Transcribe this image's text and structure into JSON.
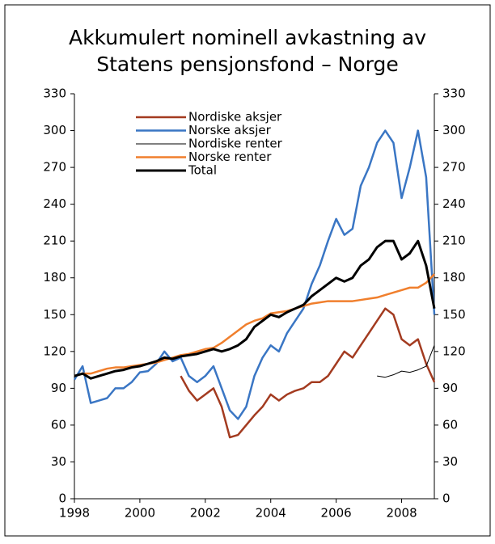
{
  "chart_data": {
    "type": "line",
    "title": [
      "Akkumulert nominell avkastning av",
      "Statens pensjonsfond – Norge"
    ],
    "x": [
      1998,
      1998.25,
      1998.5,
      1998.75,
      1999,
      1999.25,
      1999.5,
      1999.75,
      2000,
      2000.25,
      2000.5,
      2000.75,
      2001,
      2001.25,
      2001.5,
      2001.75,
      2002,
      2002.25,
      2002.5,
      2002.75,
      2003,
      2003.25,
      2003.5,
      2003.75,
      2004,
      2004.25,
      2004.5,
      2004.75,
      2005,
      2005.25,
      2005.5,
      2005.75,
      2006,
      2006.25,
      2006.5,
      2006.75,
      2007,
      2007.25,
      2007.5,
      2007.75,
      2008,
      2008.25,
      2008.5,
      2008.75,
      2009
    ],
    "series": [
      {
        "name": "Nordiske aksjer",
        "color": "#a33b20",
        "line_width": 2.5,
        "values": [
          null,
          null,
          null,
          null,
          null,
          null,
          null,
          null,
          null,
          null,
          null,
          null,
          null,
          100,
          88,
          80,
          85,
          90,
          75,
          50,
          52,
          60,
          68,
          75,
          85,
          80,
          85,
          88,
          90,
          95,
          95,
          100,
          110,
          120,
          115,
          125,
          135,
          145,
          155,
          150,
          130,
          125,
          130,
          110,
          95
        ]
      },
      {
        "name": "Norske aksjer",
        "color": "#3a76c4",
        "line_width": 2.5,
        "values": [
          97,
          108,
          78,
          80,
          82,
          90,
          90,
          95,
          103,
          104,
          110,
          120,
          112,
          115,
          100,
          95,
          100,
          108,
          90,
          72,
          65,
          75,
          100,
          115,
          125,
          120,
          135,
          145,
          155,
          175,
          190,
          210,
          228,
          215,
          220,
          255,
          270,
          290,
          300,
          290,
          245,
          270,
          300,
          262,
          150
        ]
      },
      {
        "name": "Nordiske renter",
        "color": "#000000",
        "line_width": 1,
        "values": [
          null,
          null,
          null,
          null,
          null,
          null,
          null,
          null,
          null,
          null,
          null,
          null,
          null,
          null,
          null,
          null,
          null,
          null,
          null,
          null,
          null,
          null,
          null,
          null,
          null,
          null,
          null,
          null,
          null,
          null,
          null,
          null,
          null,
          null,
          null,
          null,
          null,
          100,
          99,
          101,
          104,
          103,
          105,
          108,
          125
        ]
      },
      {
        "name": "Norske renter",
        "color": "#f07f2d",
        "line_width": 2.5,
        "values": [
          100,
          102,
          102,
          104,
          106,
          107,
          107,
          108,
          109,
          110,
          111,
          113,
          115,
          117,
          118,
          120,
          122,
          123,
          127,
          132,
          137,
          142,
          145,
          147,
          151,
          152,
          153,
          155,
          157,
          159,
          160,
          161,
          161,
          161,
          161,
          162,
          163,
          164,
          166,
          168,
          170,
          172,
          172,
          176,
          183
        ]
      },
      {
        "name": "Total",
        "color": "#000000",
        "line_width": 3,
        "values": [
          100,
          102,
          98,
          100,
          102,
          104,
          105,
          107,
          108,
          110,
          112,
          115,
          114,
          116,
          117,
          118,
          120,
          122,
          120,
          122,
          125,
          130,
          140,
          145,
          150,
          148,
          152,
          155,
          158,
          165,
          170,
          175,
          180,
          177,
          180,
          190,
          195,
          205,
          210,
          210,
          195,
          200,
          210,
          190,
          155
        ]
      }
    ],
    "xlim": [
      1998,
      2009
    ],
    "xticks": [
      1998,
      2000,
      2002,
      2004,
      2006,
      2008
    ],
    "ylim": [
      0,
      330
    ],
    "yticks": [
      0,
      30,
      60,
      90,
      120,
      150,
      180,
      210,
      240,
      270,
      300,
      330
    ],
    "y2lim": [
      0,
      330
    ],
    "y2ticks": [
      0,
      30,
      60,
      90,
      120,
      150,
      180,
      210,
      240,
      270,
      300,
      330
    ]
  }
}
